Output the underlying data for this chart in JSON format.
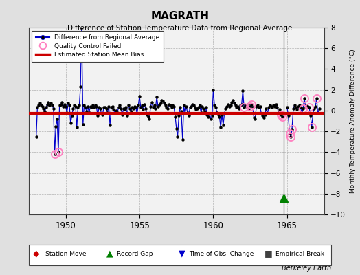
{
  "title": "MAGRATH",
  "subtitle": "Difference of Station Temperature Data from Regional Average",
  "ylabel": "Monthly Temperature Anomaly Difference (°C)",
  "xlim": [
    1947.5,
    1967.5
  ],
  "ylim": [
    -10,
    8
  ],
  "yticks": [
    -10,
    -8,
    -6,
    -4,
    -2,
    0,
    2,
    4,
    6,
    8
  ],
  "xticks": [
    1950,
    1955,
    1960,
    1965
  ],
  "fig_bg_color": "#e0e0e0",
  "plot_bg_color": "#f2f2f2",
  "main_line_color": "#0000cc",
  "bias_line_color": "#cc0000",
  "vertical_line_color": "#808080",
  "qc_marker_color": "#ff80c0",
  "data_marker_color": "#000000",
  "record_gap_color": "#008000",
  "obs_change_color": "#0000cc",
  "station_move_color": "#cc0000",
  "empirical_break_color": "#404040",
  "vertical_line_x": 1964.75,
  "record_gap_x": 1964.75,
  "record_gap_y": -8.4,
  "bias_segments": [
    {
      "x_start": 1947.5,
      "x_end": 1964.75,
      "y": -0.28
    },
    {
      "x_start": 1964.75,
      "x_end": 1967.5,
      "y": -0.28
    }
  ],
  "time_series": [
    [
      1948.0,
      -2.5
    ],
    [
      1948.08,
      0.3
    ],
    [
      1948.17,
      0.5
    ],
    [
      1948.25,
      0.7
    ],
    [
      1948.33,
      0.5
    ],
    [
      1948.42,
      0.4
    ],
    [
      1948.5,
      0.2
    ],
    [
      1948.58,
      -0.1
    ],
    [
      1948.67,
      0.3
    ],
    [
      1948.75,
      0.6
    ],
    [
      1948.83,
      0.8
    ],
    [
      1948.92,
      0.5
    ],
    [
      1949.0,
      0.7
    ],
    [
      1949.08,
      0.5
    ],
    [
      1949.17,
      0.2
    ],
    [
      1949.25,
      -4.2
    ],
    [
      1949.33,
      -1.5
    ],
    [
      1949.42,
      -0.8
    ],
    [
      1949.5,
      -4.0
    ],
    [
      1949.58,
      0.5
    ],
    [
      1949.67,
      0.6
    ],
    [
      1949.75,
      0.8
    ],
    [
      1949.83,
      0.4
    ],
    [
      1949.92,
      0.6
    ],
    [
      1950.0,
      0.4
    ],
    [
      1950.08,
      -0.2
    ],
    [
      1950.17,
      0.7
    ],
    [
      1950.25,
      0.5
    ],
    [
      1950.33,
      -1.2
    ],
    [
      1950.42,
      -0.5
    ],
    [
      1950.5,
      0.2
    ],
    [
      1950.58,
      0.5
    ],
    [
      1950.67,
      0.4
    ],
    [
      1950.75,
      -1.6
    ],
    [
      1950.83,
      0.3
    ],
    [
      1950.92,
      0.5
    ],
    [
      1951.0,
      2.3
    ],
    [
      1951.08,
      8.0
    ],
    [
      1951.17,
      -1.3
    ],
    [
      1951.25,
      0.5
    ],
    [
      1951.33,
      0.3
    ],
    [
      1951.42,
      -0.1
    ],
    [
      1951.5,
      0.4
    ],
    [
      1951.58,
      -0.2
    ],
    [
      1951.67,
      0.4
    ],
    [
      1951.75,
      0.3
    ],
    [
      1951.83,
      0.5
    ],
    [
      1951.92,
      0.3
    ],
    [
      1952.0,
      0.5
    ],
    [
      1952.08,
      0.4
    ],
    [
      1952.17,
      -0.5
    ],
    [
      1952.25,
      0.3
    ],
    [
      1952.33,
      0.2
    ],
    [
      1952.42,
      -0.3
    ],
    [
      1952.5,
      -0.4
    ],
    [
      1952.58,
      0.3
    ],
    [
      1952.67,
      0.3
    ],
    [
      1952.75,
      0.2
    ],
    [
      1952.83,
      -0.2
    ],
    [
      1952.92,
      0.4
    ],
    [
      1953.0,
      -1.4
    ],
    [
      1953.08,
      0.3
    ],
    [
      1953.17,
      0.4
    ],
    [
      1953.25,
      0.1
    ],
    [
      1953.33,
      -0.3
    ],
    [
      1953.42,
      0.0
    ],
    [
      1953.5,
      -0.2
    ],
    [
      1953.58,
      0.3
    ],
    [
      1953.67,
      0.5
    ],
    [
      1953.75,
      0.2
    ],
    [
      1953.83,
      -0.4
    ],
    [
      1953.92,
      0.2
    ],
    [
      1954.0,
      0.1
    ],
    [
      1954.08,
      0.3
    ],
    [
      1954.17,
      -0.5
    ],
    [
      1954.25,
      0.5
    ],
    [
      1954.33,
      0.2
    ],
    [
      1954.42,
      -0.1
    ],
    [
      1954.5,
      0.3
    ],
    [
      1954.58,
      0.2
    ],
    [
      1954.67,
      0.4
    ],
    [
      1954.75,
      0.3
    ],
    [
      1954.83,
      -0.3
    ],
    [
      1954.92,
      0.5
    ],
    [
      1955.0,
      1.4
    ],
    [
      1955.08,
      0.3
    ],
    [
      1955.17,
      0.5
    ],
    [
      1955.25,
      0.1
    ],
    [
      1955.33,
      0.6
    ],
    [
      1955.42,
      0.2
    ],
    [
      1955.5,
      -0.4
    ],
    [
      1955.58,
      -0.6
    ],
    [
      1955.67,
      -0.8
    ],
    [
      1955.75,
      0.4
    ],
    [
      1955.83,
      0.8
    ],
    [
      1955.92,
      0.3
    ],
    [
      1956.0,
      0.5
    ],
    [
      1956.08,
      0.2
    ],
    [
      1956.17,
      1.3
    ],
    [
      1956.25,
      0.4
    ],
    [
      1956.33,
      0.6
    ],
    [
      1956.42,
      0.7
    ],
    [
      1956.5,
      1.0
    ],
    [
      1956.58,
      0.9
    ],
    [
      1956.67,
      0.7
    ],
    [
      1956.75,
      0.5
    ],
    [
      1956.83,
      0.3
    ],
    [
      1956.92,
      0.2
    ],
    [
      1957.0,
      0.6
    ],
    [
      1957.08,
      0.5
    ],
    [
      1957.17,
      0.3
    ],
    [
      1957.25,
      0.5
    ],
    [
      1957.33,
      0.4
    ],
    [
      1957.42,
      -0.6
    ],
    [
      1957.5,
      -1.7
    ],
    [
      1957.58,
      -2.5
    ],
    [
      1957.67,
      -0.5
    ],
    [
      1957.75,
      0.3
    ],
    [
      1957.83,
      -0.1
    ],
    [
      1957.92,
      -2.8
    ],
    [
      1958.0,
      0.5
    ],
    [
      1958.08,
      -0.3
    ],
    [
      1958.17,
      0.4
    ],
    [
      1958.25,
      -0.2
    ],
    [
      1958.33,
      -0.5
    ],
    [
      1958.42,
      0.3
    ],
    [
      1958.5,
      0.4
    ],
    [
      1958.58,
      0.6
    ],
    [
      1958.67,
      0.5
    ],
    [
      1958.75,
      0.3
    ],
    [
      1958.83,
      0.1
    ],
    [
      1958.92,
      0.2
    ],
    [
      1959.0,
      0.3
    ],
    [
      1959.08,
      0.5
    ],
    [
      1959.17,
      -0.2
    ],
    [
      1959.25,
      0.4
    ],
    [
      1959.33,
      0.2
    ],
    [
      1959.42,
      -0.1
    ],
    [
      1959.5,
      0.3
    ],
    [
      1959.58,
      -0.4
    ],
    [
      1959.67,
      -0.6
    ],
    [
      1959.75,
      -0.3
    ],
    [
      1959.83,
      -0.8
    ],
    [
      1959.92,
      -0.5
    ],
    [
      1960.0,
      2.0
    ],
    [
      1960.08,
      0.5
    ],
    [
      1960.17,
      0.3
    ],
    [
      1960.25,
      -0.2
    ],
    [
      1960.33,
      -0.4
    ],
    [
      1960.42,
      -0.6
    ],
    [
      1960.5,
      -1.6
    ],
    [
      1960.58,
      -0.4
    ],
    [
      1960.67,
      -1.4
    ],
    [
      1960.75,
      -0.3
    ],
    [
      1960.83,
      0.2
    ],
    [
      1960.92,
      0.4
    ],
    [
      1961.0,
      0.6
    ],
    [
      1961.08,
      0.4
    ],
    [
      1961.17,
      0.5
    ],
    [
      1961.25,
      0.8
    ],
    [
      1961.33,
      1.0
    ],
    [
      1961.42,
      0.7
    ],
    [
      1961.5,
      0.5
    ],
    [
      1961.58,
      0.3
    ],
    [
      1961.67,
      0.4
    ],
    [
      1961.75,
      0.2
    ],
    [
      1961.83,
      0.5
    ],
    [
      1961.92,
      0.6
    ],
    [
      1962.0,
      1.9
    ],
    [
      1962.08,
      0.3
    ],
    [
      1962.17,
      0.5
    ],
    [
      1962.25,
      0.4
    ],
    [
      1962.33,
      0.6
    ],
    [
      1962.42,
      0.2
    ],
    [
      1962.5,
      0.4
    ],
    [
      1962.58,
      0.6
    ],
    [
      1962.67,
      0.3
    ],
    [
      1962.75,
      -0.7
    ],
    [
      1962.83,
      -0.8
    ],
    [
      1962.92,
      0.4
    ],
    [
      1963.0,
      0.5
    ],
    [
      1963.08,
      0.3
    ],
    [
      1963.17,
      0.4
    ],
    [
      1963.25,
      -0.3
    ],
    [
      1963.33,
      -0.5
    ],
    [
      1963.42,
      -0.7
    ],
    [
      1963.5,
      -0.4
    ],
    [
      1963.58,
      0.2
    ],
    [
      1963.67,
      -0.3
    ],
    [
      1963.75,
      0.3
    ],
    [
      1963.83,
      0.5
    ],
    [
      1963.92,
      0.4
    ],
    [
      1964.0,
      0.3
    ],
    [
      1964.08,
      0.5
    ],
    [
      1964.17,
      0.4
    ],
    [
      1964.25,
      0.6
    ],
    [
      1964.33,
      0.3
    ],
    [
      1964.42,
      -0.2
    ],
    [
      1964.5,
      0.1
    ],
    [
      1964.58,
      -0.4
    ],
    [
      1964.67,
      -0.6
    ],
    [
      1965.0,
      0.3
    ],
    [
      1965.08,
      -0.5
    ],
    [
      1965.17,
      -2.2
    ],
    [
      1965.25,
      -2.5
    ],
    [
      1965.33,
      -1.8
    ],
    [
      1965.42,
      0.2
    ],
    [
      1965.5,
      0.5
    ],
    [
      1965.58,
      0.3
    ],
    [
      1965.67,
      0.1
    ],
    [
      1965.75,
      0.4
    ],
    [
      1965.83,
      0.5
    ],
    [
      1965.92,
      0.3
    ],
    [
      1966.0,
      -0.3
    ],
    [
      1966.08,
      0.2
    ],
    [
      1966.17,
      1.2
    ],
    [
      1966.25,
      0.3
    ],
    [
      1966.33,
      0.5
    ],
    [
      1966.42,
      0.4
    ],
    [
      1966.5,
      0.3
    ],
    [
      1966.58,
      -0.5
    ],
    [
      1966.67,
      -1.6
    ],
    [
      1966.75,
      -0.3
    ],
    [
      1966.83,
      0.2
    ],
    [
      1966.92,
      0.4
    ],
    [
      1967.0,
      1.2
    ],
    [
      1967.08,
      -0.3
    ],
    [
      1967.17,
      0.2
    ]
  ],
  "qc_failed": [
    [
      1949.25,
      -4.2
    ],
    [
      1949.5,
      -4.0
    ],
    [
      1962.08,
      0.3
    ],
    [
      1962.5,
      0.4
    ],
    [
      1962.58,
      0.6
    ],
    [
      1964.58,
      -0.4
    ],
    [
      1964.67,
      -0.6
    ],
    [
      1965.17,
      -2.2
    ],
    [
      1965.25,
      -2.5
    ],
    [
      1965.33,
      -1.8
    ],
    [
      1966.08,
      0.2
    ],
    [
      1966.17,
      1.2
    ],
    [
      1966.5,
      0.3
    ],
    [
      1966.67,
      -1.6
    ],
    [
      1967.0,
      1.2
    ]
  ]
}
